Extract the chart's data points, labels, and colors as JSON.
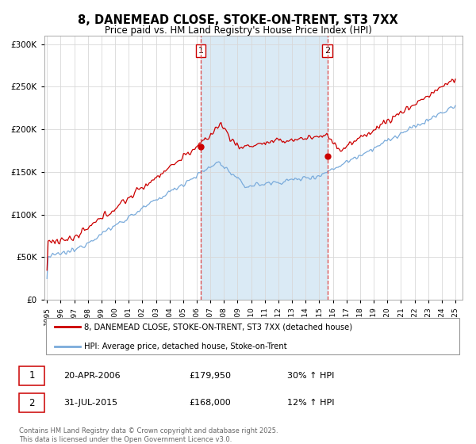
{
  "title": "8, DANEMEAD CLOSE, STOKE-ON-TRENT, ST3 7XX",
  "subtitle": "Price paid vs. HM Land Registry's House Price Index (HPI)",
  "legend_line1": "8, DANEMEAD CLOSE, STOKE-ON-TRENT, ST3 7XX (detached house)",
  "legend_line2": "HPI: Average price, detached house, Stoke-on-Trent",
  "transaction1_date": "20-APR-2006",
  "transaction1_price": "£179,950",
  "transaction1_hpi": "30% ↑ HPI",
  "transaction2_date": "31-JUL-2015",
  "transaction2_price": "£168,000",
  "transaction2_hpi": "12% ↑ HPI",
  "footer": "Contains HM Land Registry data © Crown copyright and database right 2025.\nThis data is licensed under the Open Government Licence v3.0.",
  "price_color": "#cc0000",
  "hpi_color": "#7aabdb",
  "transaction1_x": 2006.3,
  "transaction2_x": 2015.6,
  "shaded_region_color": "#daeaf5",
  "ylim": [
    0,
    310000
  ],
  "xlim_start": 1994.8,
  "xlim_end": 2025.5,
  "marker1_price": 179950,
  "marker2_price": 168000
}
